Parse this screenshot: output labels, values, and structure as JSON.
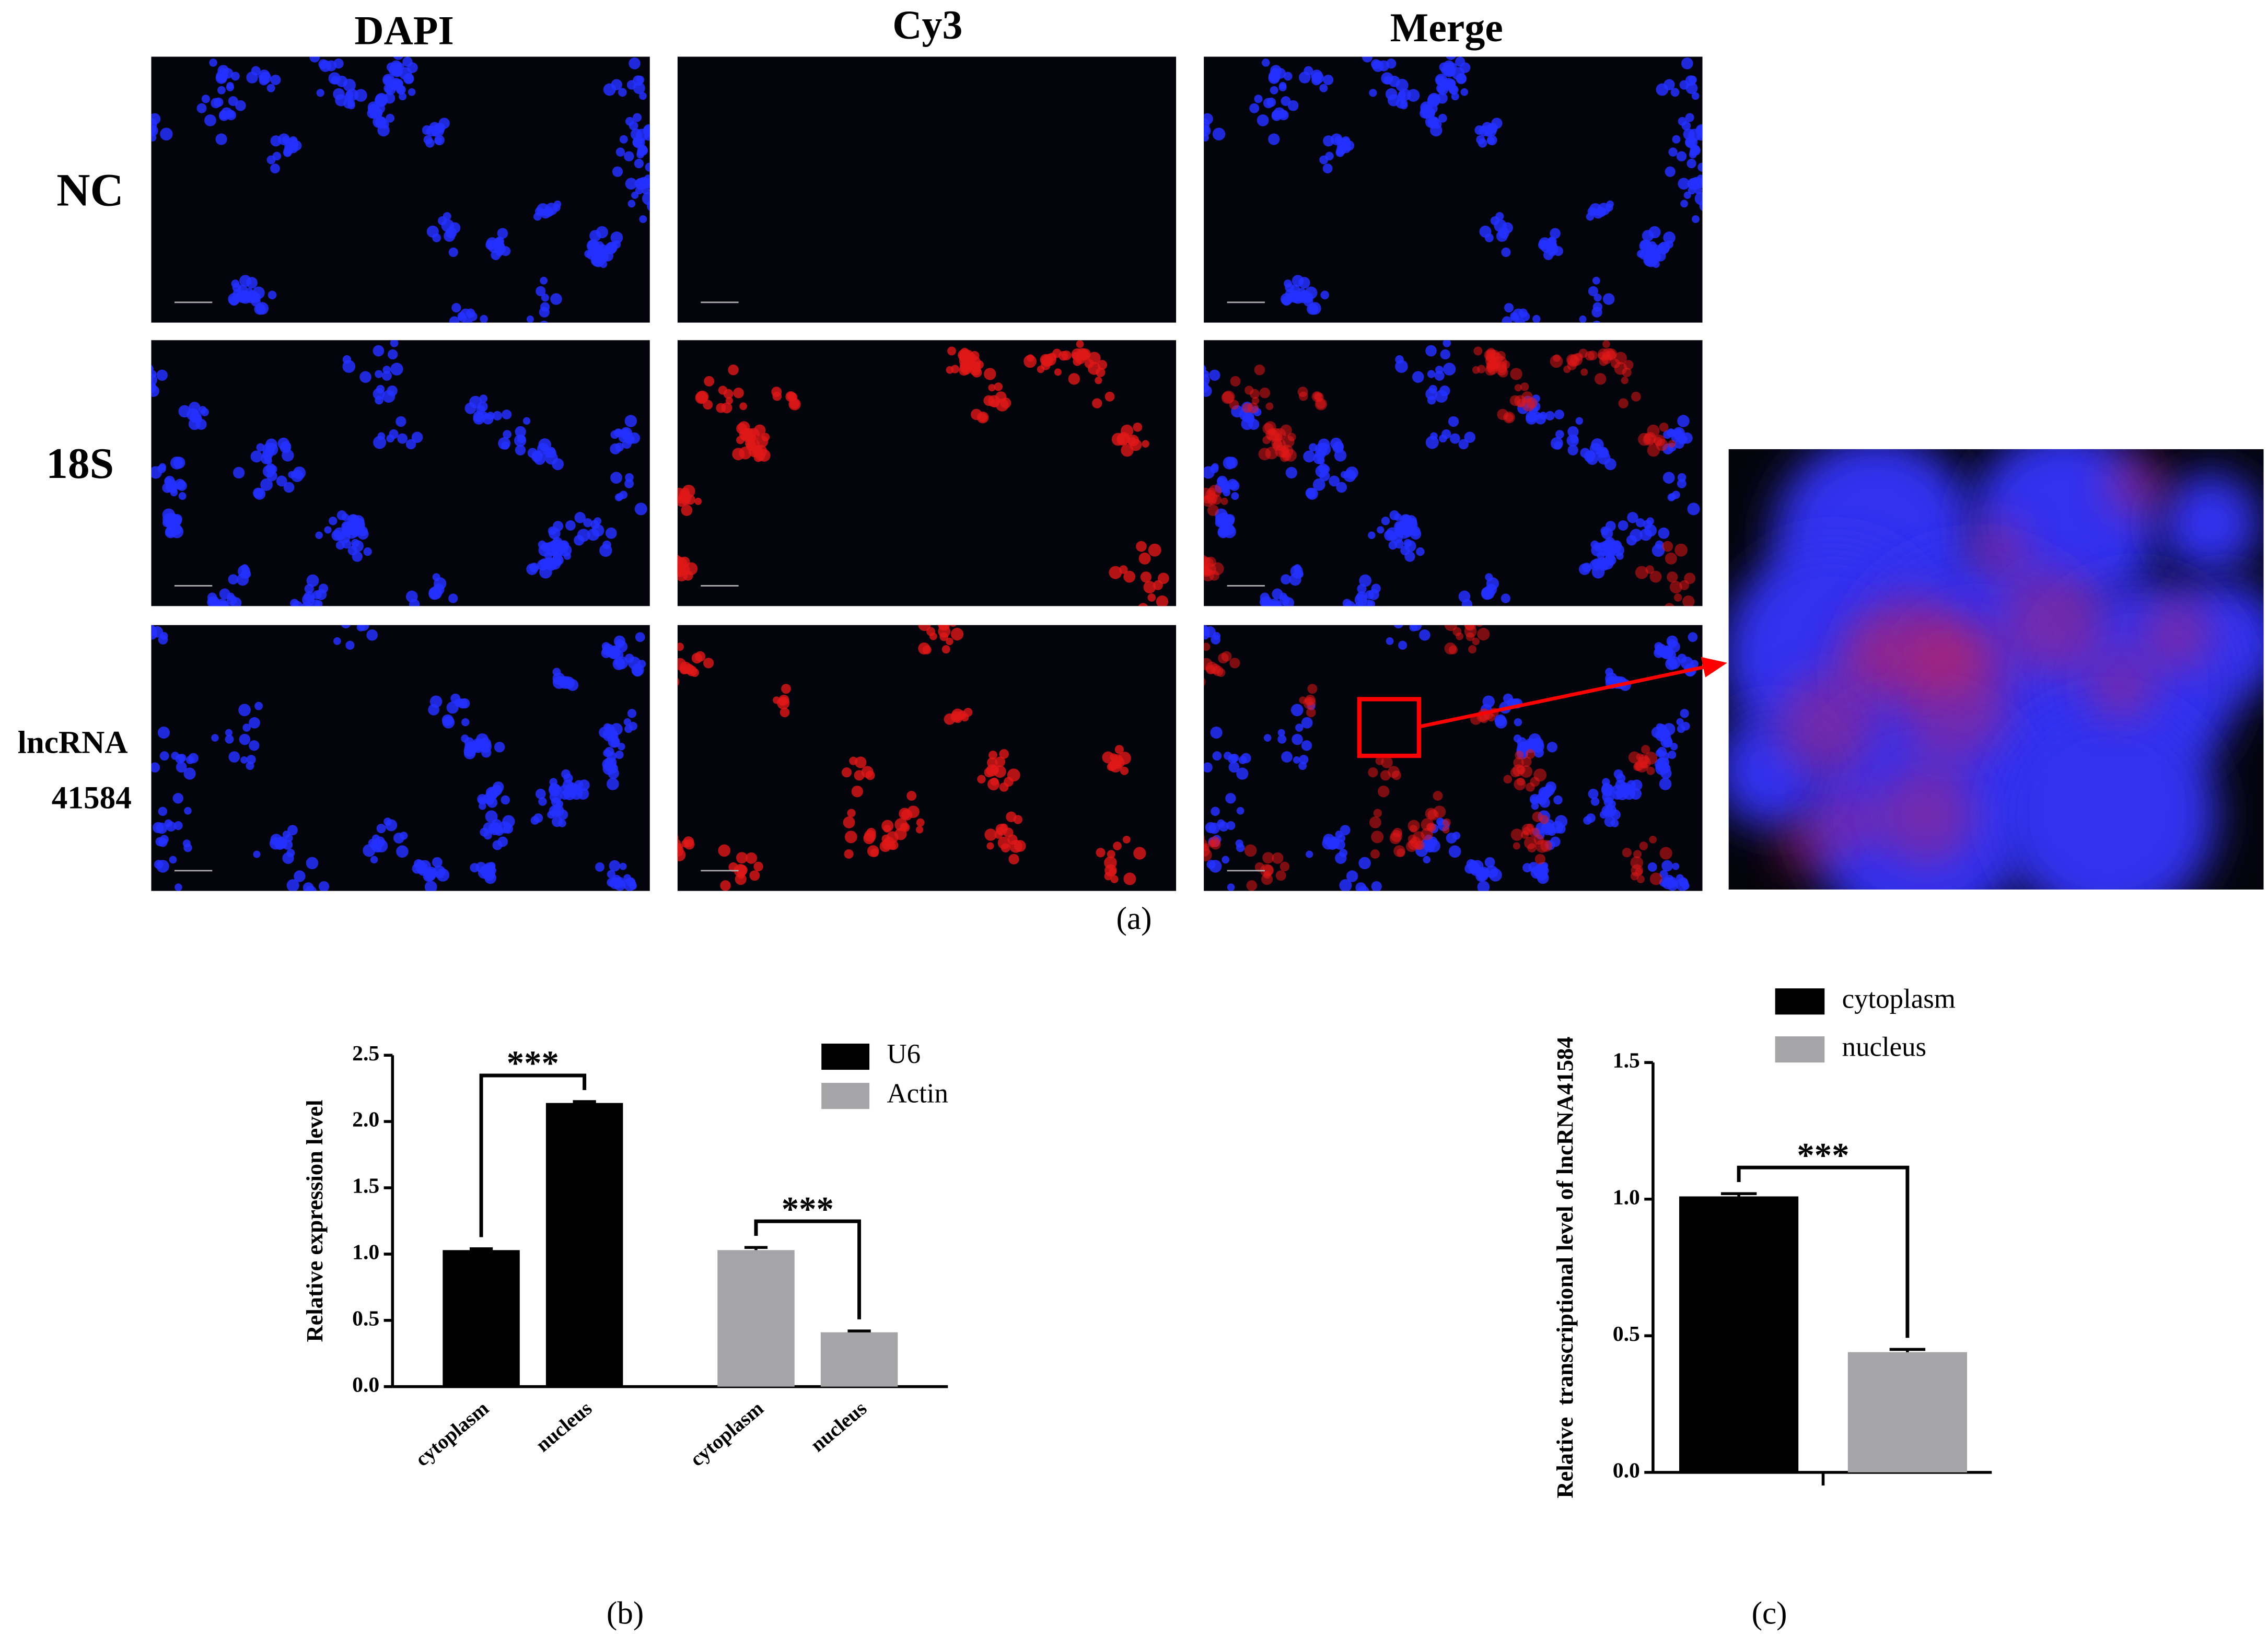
{
  "panel_a": {
    "columns": [
      "DAPI",
      "Cy3",
      "Merge"
    ],
    "rows": [
      [
        "NC"
      ],
      [
        "18S"
      ],
      [
        "lncRNA",
        "41584"
      ]
    ],
    "label": "(a)"
  },
  "panel_b": {
    "label": "(b)"
  },
  "panel_c": {
    "label": "(c)"
  },
  "chart_data": [
    {
      "type": "bar",
      "ylabel": "Relative expression level",
      "categories": [
        "cytoplasm",
        "nucleus"
      ],
      "series": [
        {
          "name": "U6",
          "color": "#000000",
          "values": [
            1.03,
            2.14
          ],
          "errors": [
            0.01,
            0.01
          ]
        },
        {
          "name": "Actin",
          "color": "#a5a5a8",
          "values": [
            1.03,
            0.41
          ],
          "errors": [
            0.02,
            0.01
          ]
        }
      ],
      "annotations": [
        "***",
        "***"
      ],
      "ylim": [
        0,
        2.5
      ],
      "yticks": [
        {
          "value": 0,
          "label": "0.0"
        },
        0.5,
        {
          "value": 1,
          "label": "1.0"
        },
        1.5,
        {
          "value": 2,
          "label": "2.0"
        },
        2.5
      ],
      "legend": "upper right"
    },
    {
      "type": "bar",
      "ylabel": "Relative  transcriptional level of lncRNA41584",
      "categories": [
        null
      ],
      "series": [
        {
          "name": "cytoplasm",
          "color": "#000000",
          "values": [
            1.01
          ],
          "errors": [
            0.01
          ]
        },
        {
          "name": "nucleus",
          "color": "#a5a5a8",
          "values": [
            0.44
          ],
          "errors": [
            0.01
          ]
        }
      ],
      "annotations": [
        "***"
      ],
      "ylim": [
        0,
        1.5
      ],
      "yticks": [
        {
          "value": 0,
          "label": "0.0"
        },
        0.5,
        {
          "value": 1,
          "label": "1.0"
        },
        1.5
      ],
      "legend": "upper center"
    }
  ]
}
